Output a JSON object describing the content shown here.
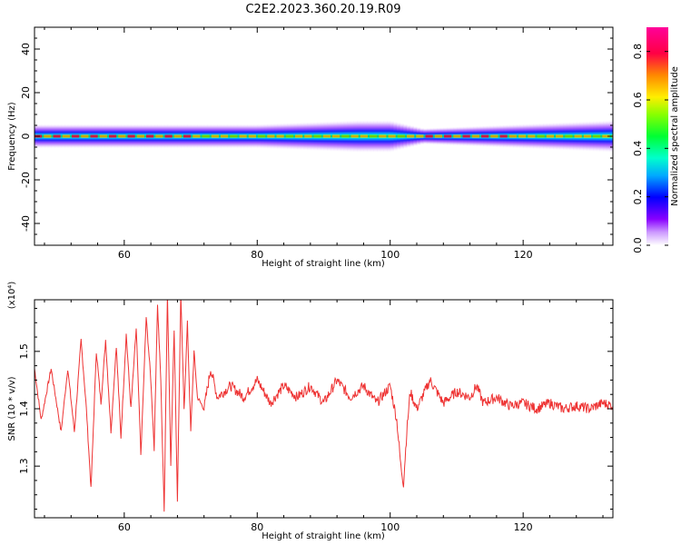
{
  "title": "C2E2.2023.360.20.19.R09",
  "chart_data": [
    {
      "type": "heatmap",
      "xlabel": "Height of straight line (km)",
      "ylabel": "Frequency (Hz)",
      "xlim": [
        46.5,
        133.5
      ],
      "ylim": [
        -50,
        50
      ],
      "xticks": [
        60,
        80,
        100,
        120
      ],
      "yticks": [
        -40,
        -20,
        0,
        20,
        40
      ],
      "colorbar": {
        "label": "Normalized spectral amplitude",
        "range": [
          0,
          0.9
        ],
        "ticks": [
          "0.0",
          "0.2",
          "0.4",
          "0.6",
          "0.8"
        ],
        "colormap": "rainbow (white-violet-blue-cyan-green-yellow-orange-red-magenta)"
      },
      "description_values": {
        "band_center_hz": 0,
        "band_halfwidth_hz": [
          [
            46.5,
            3
          ],
          [
            80,
            3
          ],
          [
            95,
            4
          ],
          [
            100,
            4
          ],
          [
            105,
            2
          ],
          [
            133.5,
            4
          ]
        ]
      }
    },
    {
      "type": "line",
      "xlabel": "Height of straight line (km)",
      "ylabel": "SNR (10 * v/v)",
      "yscale_label": "(x10⁴)",
      "xlim": [
        46.5,
        133.5
      ],
      "ylim": [
        1.21,
        1.59
      ],
      "xticks": [
        60,
        80,
        100,
        120
      ],
      "yticks": [
        "1.3",
        "1.4",
        "1.5"
      ],
      "series": [
        {
          "color": "#ee3333",
          "x": [
            46.5,
            47.5,
            49,
            50.5,
            51.5,
            52.5,
            53.5,
            54.3,
            55,
            55.8,
            56.5,
            57.2,
            58,
            58.8,
            59.5,
            60.3,
            61,
            61.8,
            62.5,
            63.3,
            64,
            64.5,
            65,
            65.5,
            66,
            66.5,
            67,
            67.5,
            68,
            68.5,
            69,
            69.5,
            70,
            70.5,
            71,
            72,
            73,
            74,
            76,
            78,
            80,
            82,
            84,
            86,
            88,
            90,
            92,
            94,
            96,
            98,
            100,
            101,
            101.6,
            102,
            102.5,
            103,
            104,
            106,
            108,
            110,
            112,
            113,
            114,
            116,
            118,
            120,
            122,
            124,
            126,
            128,
            130,
            132,
            133.5
          ],
          "y": [
            1.47,
            1.38,
            1.47,
            1.36,
            1.47,
            1.36,
            1.52,
            1.4,
            1.26,
            1.5,
            1.41,
            1.52,
            1.36,
            1.51,
            1.35,
            1.53,
            1.4,
            1.54,
            1.32,
            1.56,
            1.45,
            1.33,
            1.58,
            1.45,
            1.22,
            1.6,
            1.3,
            1.54,
            1.24,
            1.6,
            1.4,
            1.55,
            1.36,
            1.5,
            1.42,
            1.4,
            1.47,
            1.42,
            1.44,
            1.42,
            1.45,
            1.41,
            1.44,
            1.42,
            1.44,
            1.41,
            1.45,
            1.42,
            1.44,
            1.41,
            1.44,
            1.38,
            1.3,
            1.27,
            1.36,
            1.43,
            1.4,
            1.45,
            1.41,
            1.43,
            1.42,
            1.44,
            1.41,
            1.42,
            1.405,
            1.41,
            1.4,
            1.41,
            1.4,
            1.405,
            1.4,
            1.41,
            1.405
          ]
        }
      ]
    }
  ]
}
